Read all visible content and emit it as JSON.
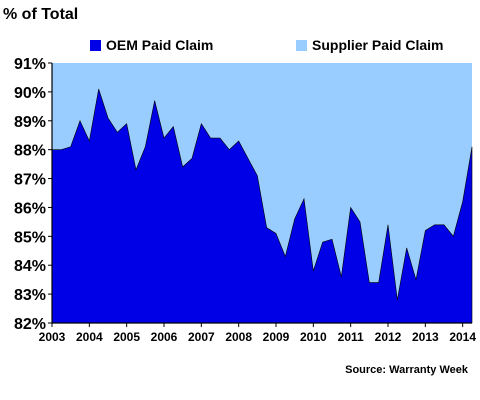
{
  "chart_data": {
    "type": "area",
    "title": "",
    "ylabel": "% of Total",
    "xlabel": "",
    "ylim": [
      82,
      91
    ],
    "xlim": [
      2003,
      2014.25
    ],
    "y_ticks": [
      {
        "value": 91,
        "label": "91%"
      },
      {
        "value": 90,
        "label": "90%"
      },
      {
        "value": 89,
        "label": "89%"
      },
      {
        "value": 88,
        "label": "88%"
      },
      {
        "value": 87,
        "label": "87%"
      },
      {
        "value": 86,
        "label": "86%"
      },
      {
        "value": 85,
        "label": "85%"
      },
      {
        "value": 84,
        "label": "84%"
      },
      {
        "value": 83,
        "label": "83%"
      },
      {
        "value": 82,
        "label": "82%"
      }
    ],
    "x_ticks": [
      {
        "value": 2003,
        "label": "2003"
      },
      {
        "value": 2004,
        "label": "2004"
      },
      {
        "value": 2005,
        "label": "2005"
      },
      {
        "value": 2006,
        "label": "2006"
      },
      {
        "value": 2007,
        "label": "2007"
      },
      {
        "value": 2008,
        "label": "2008"
      },
      {
        "value": 2009,
        "label": "2009"
      },
      {
        "value": 2010,
        "label": "2010"
      },
      {
        "value": 2011,
        "label": "2011"
      },
      {
        "value": 2012,
        "label": "2012"
      },
      {
        "value": 2013,
        "label": "2013"
      },
      {
        "value": 2014,
        "label": "2014"
      }
    ],
    "grid": false,
    "legend_position": "top",
    "series": [
      {
        "name": "OEM Paid Claim",
        "color": "#0000e6",
        "x": [
          2003.0,
          2003.25,
          2003.5,
          2003.75,
          2004.0,
          2004.25,
          2004.5,
          2004.75,
          2005.0,
          2005.25,
          2005.5,
          2005.75,
          2006.0,
          2006.25,
          2006.5,
          2006.75,
          2007.0,
          2007.25,
          2007.5,
          2007.75,
          2008.0,
          2008.25,
          2008.5,
          2008.75,
          2009.0,
          2009.25,
          2009.5,
          2009.75,
          2010.0,
          2010.25,
          2010.5,
          2010.75,
          2011.0,
          2011.25,
          2011.5,
          2011.75,
          2012.0,
          2012.25,
          2012.5,
          2012.75,
          2013.0,
          2013.25,
          2013.5,
          2013.75,
          2014.0,
          2014.25
        ],
        "values": [
          88.0,
          88.0,
          88.1,
          89.0,
          88.3,
          90.1,
          89.1,
          88.6,
          88.9,
          87.3,
          88.1,
          89.7,
          88.4,
          88.8,
          87.4,
          87.7,
          88.9,
          88.4,
          88.4,
          88.0,
          88.3,
          87.7,
          87.1,
          85.3,
          85.1,
          84.3,
          85.6,
          86.3,
          83.8,
          84.8,
          84.9,
          83.6,
          86.0,
          85.5,
          83.4,
          83.4,
          85.4,
          82.8,
          84.6,
          83.5,
          85.2,
          85.4,
          85.4,
          85.0,
          86.2,
          88.1
        ]
      },
      {
        "name": "Supplier Paid Claim",
        "color": "#99ccff"
      }
    ],
    "annotations": [
      "Source: Warranty Week"
    ]
  }
}
